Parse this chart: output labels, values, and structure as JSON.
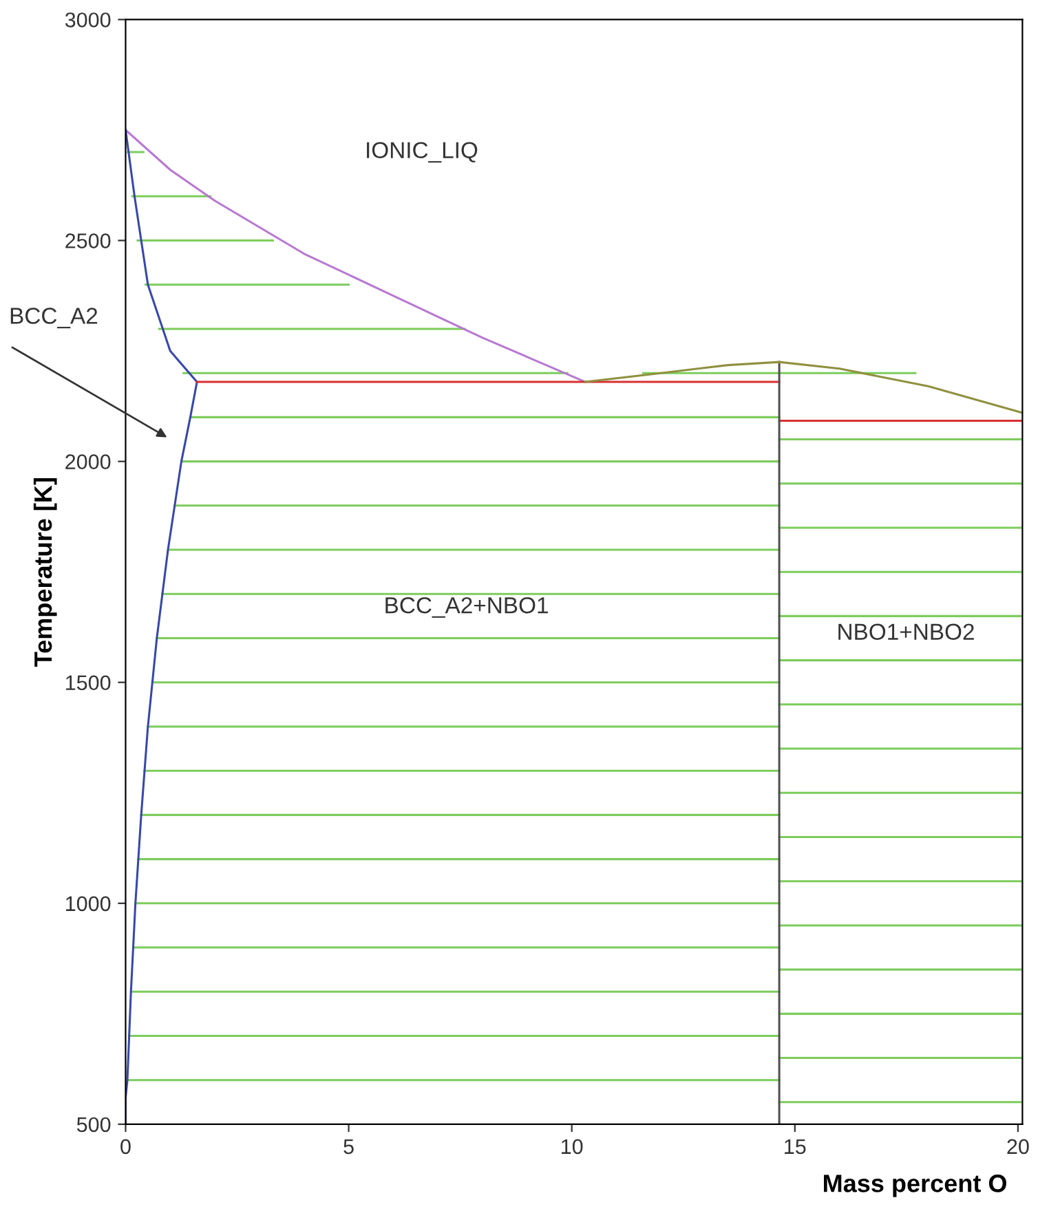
{
  "chart_data": {
    "type": "line",
    "xlabel": "Mass percent O",
    "ylabel": "Temperature [K]",
    "xlim": [
      0,
      20.1
    ],
    "ylim": [
      500,
      3000
    ],
    "xticks": [
      0,
      5,
      10,
      15,
      20
    ],
    "yticks": [
      500,
      1000,
      1500,
      2000,
      2500,
      3000
    ],
    "grid": false,
    "legend": false,
    "marker": "none",
    "line_style": "solid",
    "series": [
      {
        "color": "#7ccc5c",
        "x": [
          0.05,
          0.4
        ],
        "values": [
          2700,
          2700
        ]
      },
      {
        "color": "#7ccc5c",
        "x": [
          0.15,
          1.9
        ],
        "values": [
          2600,
          2600
        ]
      },
      {
        "color": "#7ccc5c",
        "x": [
          0.27,
          3.3
        ],
        "values": [
          2500,
          2500
        ]
      },
      {
        "color": "#7ccc5c",
        "x": [
          0.45,
          5.0
        ],
        "values": [
          2400,
          2400
        ]
      },
      {
        "color": "#7ccc5c",
        "x": [
          0.75,
          7.6
        ],
        "values": [
          2300,
          2300
        ]
      },
      {
        "color": "#7ccc5c",
        "x": [
          1.3,
          9.9
        ],
        "values": [
          2200,
          2200
        ]
      },
      {
        "color": "#7ccc5c",
        "x": [
          11.6,
          17.7
        ],
        "values": [
          2200,
          2200
        ]
      },
      {
        "color": "#7ccc5c",
        "x": [
          1.45,
          14.65
        ],
        "values": [
          2100,
          2100
        ]
      },
      {
        "color": "#7ccc5c",
        "x": [
          1.25,
          14.65
        ],
        "values": [
          2000,
          2000
        ]
      },
      {
        "color": "#7ccc5c",
        "x": [
          1.1,
          14.65
        ],
        "values": [
          1900,
          1900
        ]
      },
      {
        "color": "#7ccc5c",
        "x": [
          0.95,
          14.65
        ],
        "values": [
          1800,
          1800
        ]
      },
      {
        "color": "#7ccc5c",
        "x": [
          0.82,
          14.65
        ],
        "values": [
          1700,
          1700
        ]
      },
      {
        "color": "#7ccc5c",
        "x": [
          0.7,
          14.65
        ],
        "values": [
          1600,
          1600
        ]
      },
      {
        "color": "#7ccc5c",
        "x": [
          0.6,
          14.65
        ],
        "values": [
          1500,
          1500
        ]
      },
      {
        "color": "#7ccc5c",
        "x": [
          0.5,
          14.65
        ],
        "values": [
          1400,
          1400
        ]
      },
      {
        "color": "#7ccc5c",
        "x": [
          0.42,
          14.65
        ],
        "values": [
          1300,
          1300
        ]
      },
      {
        "color": "#7ccc5c",
        "x": [
          0.35,
          14.65
        ],
        "values": [
          1200,
          1200
        ]
      },
      {
        "color": "#7ccc5c",
        "x": [
          0.28,
          14.65
        ],
        "values": [
          1100,
          1100
        ]
      },
      {
        "color": "#7ccc5c",
        "x": [
          0.22,
          14.65
        ],
        "values": [
          1000,
          1000
        ]
      },
      {
        "color": "#7ccc5c",
        "x": [
          0.17,
          14.65
        ],
        "values": [
          900,
          900
        ]
      },
      {
        "color": "#7ccc5c",
        "x": [
          0.12,
          14.65
        ],
        "values": [
          800,
          800
        ]
      },
      {
        "color": "#7ccc5c",
        "x": [
          0.08,
          14.65
        ],
        "values": [
          700,
          700
        ]
      },
      {
        "color": "#7ccc5c",
        "x": [
          0.04,
          14.65
        ],
        "values": [
          600,
          600
        ]
      },
      {
        "color": "#7ccc5c",
        "x": [
          14.65,
          20.1
        ],
        "values": [
          2050,
          2050
        ]
      },
      {
        "color": "#7ccc5c",
        "x": [
          14.65,
          20.1
        ],
        "values": [
          1950,
          1950
        ]
      },
      {
        "color": "#7ccc5c",
        "x": [
          14.65,
          20.1
        ],
        "values": [
          1850,
          1850
        ]
      },
      {
        "color": "#7ccc5c",
        "x": [
          14.65,
          20.1
        ],
        "values": [
          1750,
          1750
        ]
      },
      {
        "color": "#7ccc5c",
        "x": [
          14.65,
          20.1
        ],
        "values": [
          1650,
          1650
        ]
      },
      {
        "color": "#7ccc5c",
        "x": [
          14.65,
          20.1
        ],
        "values": [
          1550,
          1550
        ]
      },
      {
        "color": "#7ccc5c",
        "x": [
          14.65,
          20.1
        ],
        "values": [
          1450,
          1450
        ]
      },
      {
        "color": "#7ccc5c",
        "x": [
          14.65,
          20.1
        ],
        "values": [
          1350,
          1350
        ]
      },
      {
        "color": "#7ccc5c",
        "x": [
          14.65,
          20.1
        ],
        "values": [
          1250,
          1250
        ]
      },
      {
        "color": "#7ccc5c",
        "x": [
          14.65,
          20.1
        ],
        "values": [
          1150,
          1150
        ]
      },
      {
        "color": "#7ccc5c",
        "x": [
          14.65,
          20.1
        ],
        "values": [
          1050,
          1050
        ]
      },
      {
        "color": "#7ccc5c",
        "x": [
          14.65,
          20.1
        ],
        "values": [
          950,
          950
        ]
      },
      {
        "color": "#7ccc5c",
        "x": [
          14.65,
          20.1
        ],
        "values": [
          850,
          850
        ]
      },
      {
        "color": "#7ccc5c",
        "x": [
          14.65,
          20.1
        ],
        "values": [
          750,
          750
        ]
      },
      {
        "color": "#7ccc5c",
        "x": [
          14.65,
          20.1
        ],
        "values": [
          650,
          650
        ]
      },
      {
        "color": "#7ccc5c",
        "x": [
          14.65,
          20.1
        ],
        "values": [
          550,
          550
        ]
      },
      {
        "color": "#b878d0",
        "x": [
          0,
          1,
          2,
          4,
          6,
          8,
          10.3
        ],
        "values": [
          2750,
          2660,
          2590,
          2470,
          2375,
          2280,
          2180
        ]
      },
      {
        "color": "#3848a8",
        "x": [
          0,
          0.2,
          0.5,
          1.0,
          1.6
        ],
        "values": [
          2750,
          2600,
          2400,
          2250,
          2180
        ]
      },
      {
        "color": "#3848a8",
        "x": [
          1.6,
          1.45,
          1.25,
          0.95,
          0.7,
          0.5,
          0.35,
          0.22,
          0.12,
          0.04,
          0,
          0
        ],
        "values": [
          2180,
          2100,
          2000,
          1800,
          1600,
          1400,
          1200,
          1000,
          800,
          600,
          560,
          500
        ]
      },
      {
        "color": "#d83030",
        "x": [
          1.6,
          14.65
        ],
        "values": [
          2180,
          2180
        ]
      },
      {
        "color": "#d83030",
        "x": [
          14.65,
          20.1
        ],
        "values": [
          2092,
          2092
        ]
      },
      {
        "color": "#505050",
        "x": [
          14.65,
          14.65
        ],
        "values": [
          500,
          2225
        ]
      },
      {
        "color": "#909040",
        "x": [
          10.3,
          12,
          13.5,
          14.65,
          16,
          18,
          20.1
        ],
        "values": [
          2180,
          2200,
          2218,
          2225,
          2210,
          2170,
          2110
        ]
      }
    ],
    "annotations": [
      "IONIC_LIQ",
      "BCC_A2+NBO1",
      "NBO1+NBO2",
      "BCC_A2"
    ]
  }
}
